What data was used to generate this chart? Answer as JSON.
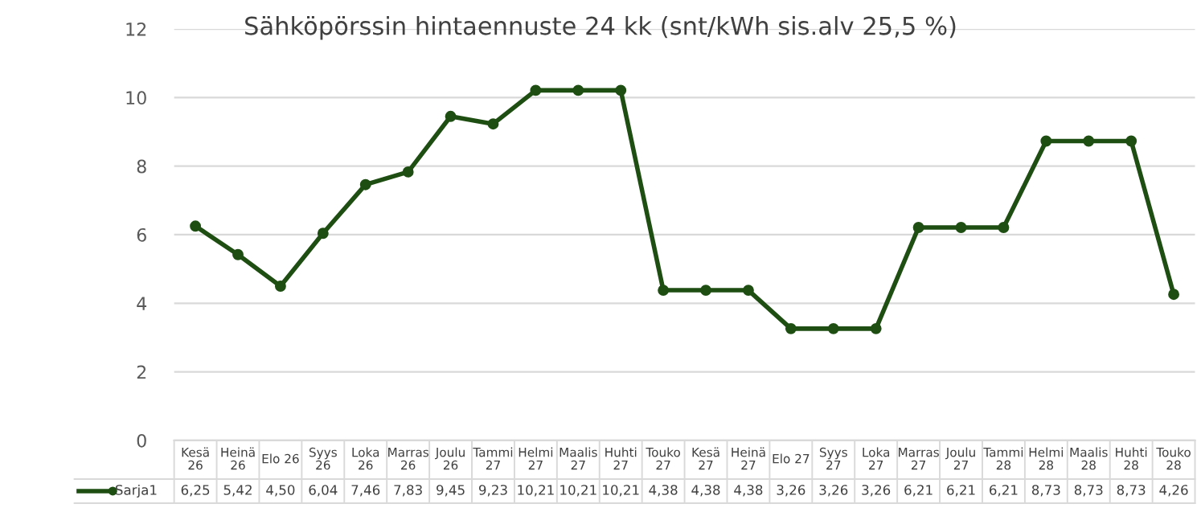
{
  "chart_data": {
    "type": "line",
    "title": "Sähköpörssin hintaennuste 24 kk (snt/kWh sis.alv 25,5 %)",
    "categories": [
      "Kesä 26",
      "Heinä 26",
      "Elo 26",
      "Syys 26",
      "Loka 26",
      "Marras 26",
      "Joulu 26",
      "Tammi 27",
      "Helmi 27",
      "Maalis 27",
      "Huhti 27",
      "Touko 27",
      "Kesä 27",
      "Heinä 27",
      "Elo 27",
      "Syys 27",
      "Loka 27",
      "Marras 27",
      "Joulu 27",
      "Tammi 28",
      "Helmi 28",
      "Maalis 28",
      "Huhti 28",
      "Touko 28"
    ],
    "series": [
      {
        "name": "Sarja1",
        "color": "#1f4e13",
        "values": [
          6.25,
          5.42,
          4.5,
          6.04,
          7.46,
          7.83,
          9.45,
          9.23,
          10.21,
          10.21,
          10.21,
          4.38,
          4.38,
          4.38,
          3.26,
          3.26,
          3.26,
          6.21,
          6.21,
          6.21,
          8.73,
          8.73,
          8.73,
          4.26
        ],
        "value_labels": [
          "6,25",
          "5,42",
          "4,50",
          "6,04",
          "7,46",
          "7,83",
          "9,45",
          "9,23",
          "10,21",
          "10,21",
          "10,21",
          "4,38",
          "4,38",
          "4,38",
          "3,26",
          "3,26",
          "3,26",
          "6,21",
          "6,21",
          "6,21",
          "8,73",
          "8,73",
          "8,73",
          "4,26"
        ]
      }
    ],
    "ylim": [
      0,
      12
    ],
    "yticks": [
      0,
      2,
      4,
      6,
      8,
      10,
      12
    ],
    "grid": "y",
    "marker": "circle",
    "line_style": "solid"
  }
}
